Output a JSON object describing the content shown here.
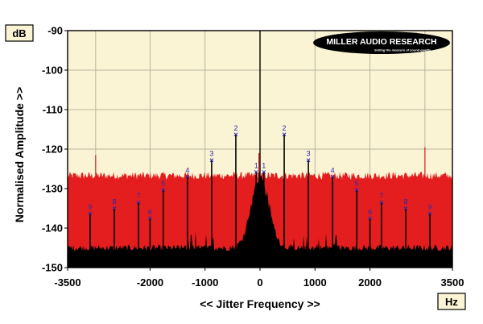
{
  "chart_data": {
    "type": "line",
    "y_unit": "dB",
    "x_unit": "Hz",
    "xlabel": "<< Jitter Frequency >>",
    "ylabel": "Normalised Amplitude >>",
    "xlim": [
      -3500,
      3500
    ],
    "ylim": [
      -150,
      -90
    ],
    "x_ticks": [
      "-3500",
      "-2000",
      "-1000",
      "0",
      "1000",
      "2000",
      "3500"
    ],
    "y_ticks": [
      "-90",
      "-100",
      "-110",
      "-120",
      "-130",
      "-140",
      "-150"
    ],
    "grid": true,
    "series": [
      {
        "band": "upper",
        "color": "#e41e1e",
        "noise_floor_db": -127,
        "spikes": [
          {
            "x": -2990,
            "y": -121.5
          },
          {
            "x": -20,
            "y": -121
          },
          {
            "x": 3000,
            "y": -119.5
          }
        ]
      },
      {
        "band": "lower",
        "color": "#000000",
        "noise_floor_db": -145,
        "center_hump_db": -127
      }
    ],
    "harmonics": [
      {
        "label": "1",
        "x": -70,
        "y": -125.8
      },
      {
        "label": "1",
        "x": 70,
        "y": -125.8
      },
      {
        "label": "2",
        "x": -440,
        "y": -116.3
      },
      {
        "label": "2",
        "x": 440,
        "y": -116.3
      },
      {
        "label": "3",
        "x": -880,
        "y": -122.8
      },
      {
        "label": "3",
        "x": 880,
        "y": -122.8
      },
      {
        "label": "4",
        "x": -1320,
        "y": -127
      },
      {
        "label": "4",
        "x": 1320,
        "y": -127
      },
      {
        "label": "5",
        "x": -1760,
        "y": -130.3
      },
      {
        "label": "5",
        "x": 1760,
        "y": -130.3
      },
      {
        "label": "6",
        "x": -2000,
        "y": -137.5
      },
      {
        "label": "6",
        "x": 2000,
        "y": -137.5
      },
      {
        "label": "7",
        "x": -2210,
        "y": -133.5
      },
      {
        "label": "7",
        "x": 2210,
        "y": -133.5
      },
      {
        "label": "8",
        "x": -2650,
        "y": -135
      },
      {
        "label": "8",
        "x": 2650,
        "y": -135
      },
      {
        "label": "9",
        "x": -3090,
        "y": -136.3
      },
      {
        "label": "9",
        "x": 3090,
        "y": -136.3
      }
    ],
    "extra_gridlines_x": [
      -2990,
      3000
    ]
  },
  "logo": {
    "name": "MILLER AUDIO RESEARCH",
    "tagline": "Setting the measure of sound quality"
  }
}
